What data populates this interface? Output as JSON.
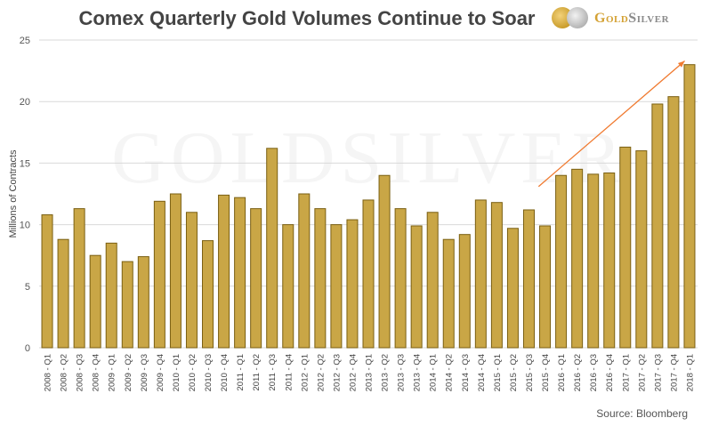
{
  "chart_data": {
    "type": "bar",
    "title": "Comex Quarterly Gold Volumes Continue to Soar",
    "xlabel": "",
    "ylabel": "Millions of Contracts",
    "ylim": [
      0,
      25
    ],
    "yticks": [
      0,
      5,
      10,
      15,
      20,
      25
    ],
    "grid": true,
    "categories": [
      "2008 - Q1",
      "2008 - Q2",
      "2008 - Q3",
      "2008 - Q4",
      "2009 - Q1",
      "2009 - Q2",
      "2009 - Q3",
      "2009 - Q4",
      "2010 - Q1",
      "2010 - Q2",
      "2010 - Q3",
      "2010 - Q4",
      "2011 - Q1",
      "2011 - Q2",
      "2011 - Q3",
      "2011 - Q4",
      "2012 - Q1",
      "2012 - Q2",
      "2012 - Q3",
      "2012 - Q4",
      "2013 - Q1",
      "2013 - Q2",
      "2013 - Q3",
      "2013 - Q4",
      "2014 - Q1",
      "2014 - Q2",
      "2014 - Q3",
      "2014 - Q4",
      "2015 - Q1",
      "2015 - Q2",
      "2015 - Q3",
      "2015 - Q4",
      "2016 - Q1",
      "2016 - Q2",
      "2016 - Q3",
      "2016 - Q4",
      "2017 - Q1",
      "2017 - Q2",
      "2017 - Q3",
      "2017 - Q4",
      "2018 - Q1"
    ],
    "values": [
      10.8,
      8.8,
      11.3,
      7.5,
      8.5,
      7.0,
      7.4,
      11.9,
      12.5,
      11.0,
      8.7,
      12.4,
      12.2,
      11.3,
      16.2,
      10.0,
      12.5,
      11.3,
      10.0,
      10.4,
      12.0,
      14.0,
      11.3,
      9.9,
      11.0,
      8.8,
      9.2,
      12.0,
      11.8,
      9.7,
      11.2,
      9.9,
      14.0,
      14.5,
      14.1,
      14.2,
      16.3,
      16.0,
      19.8,
      20.4,
      23.0
    ],
    "annotation": {
      "type": "trend-arrow",
      "from": {
        "x_index": 30.6,
        "y": 13.1
      },
      "to": {
        "x_index": 39.7,
        "y": 23.3
      }
    },
    "watermark": "GoldSilver",
    "source": "Source: Bloomberg"
  },
  "colors": {
    "bar": "#c9a646",
    "bar_edge": "#7a5f12",
    "arrow": "#f07a30",
    "grid": "#d9d9d9"
  },
  "logo": {
    "gold": "Gold",
    "silver": "Silver"
  }
}
